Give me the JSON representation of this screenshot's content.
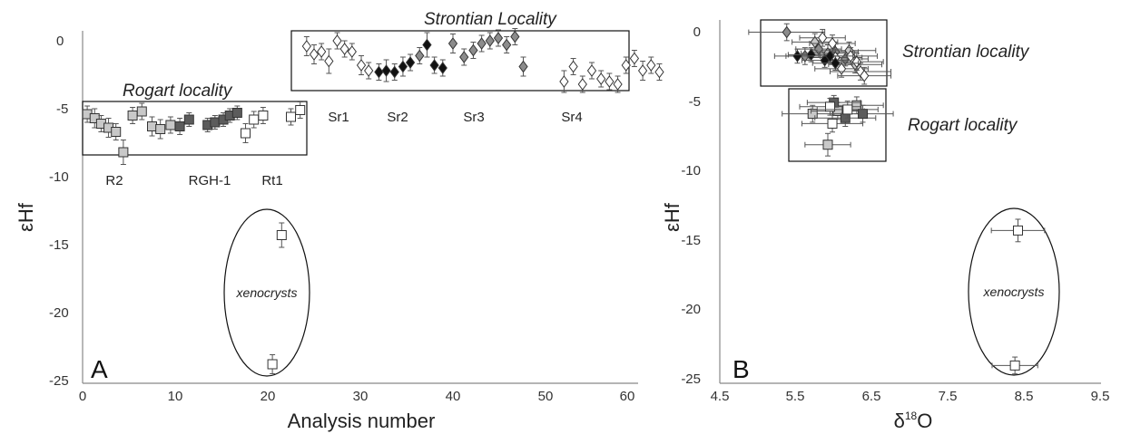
{
  "colors": {
    "white": "#ffffff",
    "light": "#c8c8c8",
    "mid": "#8c8c8c",
    "dark": "#5c5c5c",
    "black": "#111111",
    "axis": "#888888",
    "errorbar": "#555555"
  },
  "chart_data": [
    {
      "type": "scatter",
      "panel_label": "A",
      "xlabel": "Analysis number",
      "ylabel": "εHf",
      "xlim": [
        0,
        60
      ],
      "ylim": [
        -25,
        2
      ],
      "xticks": [
        "0",
        "10",
        "20",
        "30",
        "40",
        "50",
        "60"
      ],
      "yticks": [
        "0",
        "-5",
        "-10",
        "-15",
        "-20",
        "-25"
      ],
      "grid": false,
      "annotations": {
        "rogart": "Rogart  locality",
        "strontian": "Strontian Locality",
        "xenocrysts": "xenocrysts",
        "samples": [
          "R2",
          "RGH-1",
          "Rt1",
          "Sr1",
          "Sr2",
          "Sr3",
          "Sr4"
        ]
      },
      "series": [
        {
          "marker": "square",
          "fill": "light",
          "points": [
            {
              "x": 0.5,
              "y": -5.4,
              "e": 0.6
            },
            {
              "x": 1.3,
              "y": -5.7,
              "e": 0.7
            },
            {
              "x": 2.0,
              "y": -6.1,
              "e": 0.6
            },
            {
              "x": 2.8,
              "y": -6.4,
              "e": 0.7
            },
            {
              "x": 3.6,
              "y": -6.7,
              "e": 0.6
            },
            {
              "x": 4.4,
              "y": -8.2,
              "e": 0.9
            },
            {
              "x": 5.4,
              "y": -5.5,
              "e": 0.6
            },
            {
              "x": 6.4,
              "y": -5.2,
              "e": 0.6
            },
            {
              "x": 7.5,
              "y": -6.3,
              "e": 0.7
            },
            {
              "x": 8.4,
              "y": -6.5,
              "e": 0.7
            },
            {
              "x": 9.5,
              "y": -6.2,
              "e": 0.6
            }
          ]
        },
        {
          "marker": "square",
          "fill": "dark",
          "points": [
            {
              "x": 10.5,
              "y": -6.3,
              "e": 0.6
            },
            {
              "x": 11.5,
              "y": -5.8,
              "e": 0.5
            },
            {
              "x": 13.5,
              "y": -6.2,
              "e": 0.5
            },
            {
              "x": 14.3,
              "y": -6.0,
              "e": 0.5
            },
            {
              "x": 15.2,
              "y": -5.8,
              "e": 0.5
            },
            {
              "x": 15.9,
              "y": -5.5,
              "e": 0.5
            },
            {
              "x": 16.7,
              "y": -5.3,
              "e": 0.5
            }
          ]
        },
        {
          "marker": "square",
          "fill": "white",
          "points": [
            {
              "x": 17.6,
              "y": -6.8,
              "e": 0.7
            },
            {
              "x": 18.5,
              "y": -5.8,
              "e": 0.6
            },
            {
              "x": 19.5,
              "y": -5.5,
              "e": 0.6
            },
            {
              "x": 22.5,
              "y": -5.6,
              "e": 0.6
            },
            {
              "x": 23.5,
              "y": -5.1,
              "e": 0.6
            },
            {
              "x": 21.5,
              "y": -14.3,
              "e": 0.9
            },
            {
              "x": 20.5,
              "y": -23.8,
              "e": 0.7
            }
          ]
        },
        {
          "marker": "diamond",
          "fill": "white",
          "points": [
            {
              "x": 24.2,
              "y": -0.4,
              "e": 0.7
            },
            {
              "x": 25.0,
              "y": -1.0,
              "e": 0.7
            },
            {
              "x": 25.8,
              "y": -0.8,
              "e": 0.6
            },
            {
              "x": 26.6,
              "y": -1.5,
              "e": 0.9
            },
            {
              "x": 27.5,
              "y": 0.0,
              "e": 0.6
            },
            {
              "x": 28.3,
              "y": -0.6,
              "e": 0.6
            },
            {
              "x": 29.1,
              "y": -0.8,
              "e": 0.6
            },
            {
              "x": 30.1,
              "y": -1.8,
              "e": 0.7
            },
            {
              "x": 30.9,
              "y": -2.2,
              "e": 0.6
            },
            {
              "x": 52.0,
              "y": -3.0,
              "e": 0.8
            },
            {
              "x": 53.0,
              "y": -1.9,
              "e": 0.6
            },
            {
              "x": 54.0,
              "y": -3.2,
              "e": 0.6
            },
            {
              "x": 55.0,
              "y": -2.2,
              "e": 0.6
            },
            {
              "x": 56.0,
              "y": -2.8,
              "e": 0.6
            },
            {
              "x": 56.9,
              "y": -3.0,
              "e": 0.6
            },
            {
              "x": 57.8,
              "y": -3.2,
              "e": 0.6
            },
            {
              "x": 58.7,
              "y": -1.8,
              "e": 0.6
            },
            {
              "x": 59.6,
              "y": -1.3,
              "e": 0.6
            },
            {
              "x": 60.5,
              "y": -2.2,
              "e": 0.7
            },
            {
              "x": 61.4,
              "y": -1.8,
              "e": 0.6
            },
            {
              "x": 62.3,
              "y": -2.3,
              "e": 0.6
            }
          ]
        },
        {
          "marker": "diamond",
          "fill": "black",
          "points": [
            {
              "x": 32.0,
              "y": -2.3,
              "e": 0.6
            },
            {
              "x": 32.8,
              "y": -2.2,
              "e": 0.8
            },
            {
              "x": 33.7,
              "y": -2.3,
              "e": 0.6
            },
            {
              "x": 34.6,
              "y": -1.9,
              "e": 0.7
            },
            {
              "x": 35.4,
              "y": -1.6,
              "e": 0.6
            },
            {
              "x": 37.2,
              "y": -0.3,
              "e": 0.9
            },
            {
              "x": 38.0,
              "y": -1.8,
              "e": 0.6
            },
            {
              "x": 38.9,
              "y": -2.0,
              "e": 0.6
            }
          ]
        },
        {
          "marker": "diamond",
          "fill": "mid",
          "points": [
            {
              "x": 36.4,
              "y": -1.1,
              "e": 0.6
            },
            {
              "x": 40.0,
              "y": -0.2,
              "e": 0.7
            },
            {
              "x": 41.2,
              "y": -1.2,
              "e": 0.6
            },
            {
              "x": 42.2,
              "y": -0.7,
              "e": 0.6
            },
            {
              "x": 43.1,
              "y": -0.2,
              "e": 0.6
            },
            {
              "x": 44.0,
              "y": 0.0,
              "e": 0.6
            },
            {
              "x": 44.9,
              "y": 0.2,
              "e": 0.6
            },
            {
              "x": 45.8,
              "y": -0.3,
              "e": 0.6
            },
            {
              "x": 46.7,
              "y": 0.3,
              "e": 0.6
            },
            {
              "x": 47.6,
              "y": -1.9,
              "e": 0.7
            }
          ]
        }
      ]
    },
    {
      "type": "scatter",
      "panel_label": "B",
      "xlabel": "δ18O",
      "ylabel": "εHf",
      "xlim": [
        4.5,
        9.5
      ],
      "ylim": [
        -25,
        1.5
      ],
      "xticks": [
        "4.5",
        "5.5",
        "6.5",
        "7.5",
        "8.5",
        "9.5"
      ],
      "yticks": [
        "0",
        "-5",
        "-10",
        "-15",
        "-20",
        "-25"
      ],
      "grid": false,
      "annotations": {
        "strontian": "Strontian locality",
        "rogart": "Rogart locality",
        "xenocrysts": "xenocrysts"
      },
      "series": [
        {
          "marker": "diamond",
          "fill": "mid",
          "points": [
            {
              "x": 5.38,
              "y": -0.1,
              "ex": 0.5,
              "ey": 0.6
            },
            {
              "x": 5.62,
              "y": -1.8,
              "ex": 0.25,
              "ey": 0.6
            },
            {
              "x": 5.8,
              "y": -1.3,
              "ex": 0.3,
              "ey": 0.6
            },
            {
              "x": 6.02,
              "y": -1.5,
              "ex": 0.3,
              "ey": 0.6
            },
            {
              "x": 6.15,
              "y": -2.0,
              "ex": 0.3,
              "ey": 0.5
            }
          ]
        },
        {
          "marker": "diamond",
          "fill": "light",
          "points": [
            {
              "x": 5.75,
              "y": -0.8,
              "ex": 0.3,
              "ey": 0.6
            },
            {
              "x": 5.92,
              "y": -1.6,
              "ex": 0.35,
              "ey": 0.6
            },
            {
              "x": 6.2,
              "y": -1.4,
              "ex": 0.35,
              "ey": 0.6
            },
            {
              "x": 6.28,
              "y": -2.4,
              "ex": 0.35,
              "ey": 0.6
            }
          ]
        },
        {
          "marker": "diamond",
          "fill": "white",
          "points": [
            {
              "x": 5.85,
              "y": -0.5,
              "ex": 0.3,
              "ey": 0.6
            },
            {
              "x": 5.98,
              "y": -0.9,
              "ex": 0.3,
              "ey": 0.6
            },
            {
              "x": 6.02,
              "y": -1.9,
              "ex": 0.35,
              "ey": 0.6
            },
            {
              "x": 6.1,
              "y": -2.7,
              "ex": 0.35,
              "ey": 0.6
            },
            {
              "x": 6.22,
              "y": -1.8,
              "ex": 0.35,
              "ey": 0.6
            },
            {
              "x": 6.35,
              "y": -2.9,
              "ex": 0.4,
              "ey": 0.6
            },
            {
              "x": 6.3,
              "y": -2.2,
              "ex": 0.35,
              "ey": 0.6
            },
            {
              "x": 6.4,
              "y": -3.2,
              "ex": 0.35,
              "ey": 0.6
            }
          ]
        },
        {
          "marker": "diamond",
          "fill": "black",
          "points": [
            {
              "x": 5.52,
              "y": -1.8,
              "ex": 0.3,
              "ey": 0.5
            },
            {
              "x": 5.7,
              "y": -1.7,
              "ex": 0.3,
              "ey": 0.5
            },
            {
              "x": 5.88,
              "y": -2.1,
              "ex": 0.3,
              "ey": 0.5
            },
            {
              "x": 5.95,
              "y": -1.8,
              "ex": 0.3,
              "ey": 0.5
            },
            {
              "x": 6.02,
              "y": -2.3,
              "ex": 0.3,
              "ey": 0.5
            }
          ]
        },
        {
          "marker": "square",
          "fill": "light",
          "points": [
            {
              "x": 5.72,
              "y": -5.9,
              "ex": 0.4,
              "ey": 0.6
            },
            {
              "x": 5.92,
              "y": -8.1,
              "ex": 0.3,
              "ey": 0.8
            },
            {
              "x": 6.05,
              "y": -5.7,
              "ex": 0.35,
              "ey": 0.6
            },
            {
              "x": 6.3,
              "y": -5.3,
              "ex": 0.35,
              "ey": 0.6
            }
          ]
        },
        {
          "marker": "square",
          "fill": "dark",
          "points": [
            {
              "x": 6.0,
              "y": -5.1,
              "ex": 0.35,
              "ey": 0.5
            },
            {
              "x": 6.15,
              "y": -6.2,
              "ex": 0.4,
              "ey": 0.6
            },
            {
              "x": 6.38,
              "y": -5.9,
              "ex": 0.4,
              "ey": 0.6
            }
          ]
        },
        {
          "marker": "square",
          "fill": "white",
          "points": [
            {
              "x": 5.95,
              "y": -5.4,
              "ex": 0.4,
              "ey": 0.6
            },
            {
              "x": 5.98,
              "y": -6.6,
              "ex": 0.4,
              "ey": 0.6
            },
            {
              "x": 6.18,
              "y": -5.6,
              "ex": 0.4,
              "ey": 0.6
            },
            {
              "x": 8.42,
              "y": -14.2,
              "ex": 0.35,
              "ey": 0.8
            },
            {
              "x": 8.38,
              "y": -23.8,
              "ex": 0.3,
              "ey": 0.6
            }
          ]
        }
      ]
    }
  ]
}
